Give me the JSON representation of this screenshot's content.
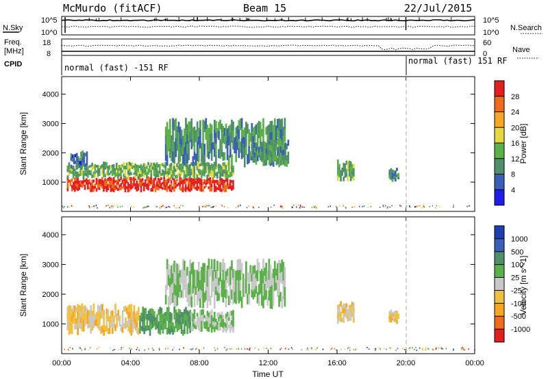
{
  "header": {
    "station": "McMurdo (fitACF)",
    "beam": "Beam 15",
    "date": "22/Jul/2015"
  },
  "status_panel": {
    "nsky_label": "N.Sky",
    "nsearch_label": "N.Search",
    "nsky_ticks": [
      "10^5",
      "10^0"
    ],
    "nsearch_ticks": [
      "10^5",
      "10^0"
    ],
    "freq_label_line1": "Freq.",
    "freq_label_line2": "[MHz]",
    "freq_ticks": [
      "18",
      "8"
    ],
    "nave_label": "Nave",
    "nave_ticks": [
      "60",
      "0"
    ],
    "cpid_label": "CPID",
    "cpid_segments": [
      {
        "text": "normal (fast) -151 RF",
        "start_hour": 0,
        "end_hour": 20.0
      },
      {
        "text": "normal (fast) 151 RF",
        "start_hour": 20.0,
        "end_hour": 24
      }
    ]
  },
  "x_axis": {
    "label": "Time UT",
    "ticks": [
      "00:00",
      "04:00",
      "08:00",
      "12:00",
      "16:00",
      "20:00",
      "00:00"
    ],
    "tick_hours": [
      0,
      4,
      8,
      12,
      16,
      20,
      24
    ]
  },
  "colors": {
    "power": [
      "#1e1ee6",
      "#3a5fb8",
      "#4f8f6a",
      "#5bb04a",
      "#e6d640",
      "#f5a623",
      "#ef6a1a",
      "#e02020"
    ],
    "velocity": [
      "#e02020",
      "#ef6a1a",
      "#f5a623",
      "#f0c040",
      "#c8c8c8",
      "#5bb04a",
      "#4f8f6a",
      "#3a5fb8",
      "#1e3fb0"
    ]
  },
  "chart_data": [
    {
      "type": "heatmap",
      "title": "",
      "ylabel": "Slant Range [km]",
      "xlabel": "",
      "ylim": [
        0,
        4600
      ],
      "xlim": [
        0,
        24
      ],
      "yticks": [
        1000,
        2000,
        3000,
        4000
      ],
      "colorbar": {
        "label": "Power [dB]",
        "ticks": [
          "28",
          "24",
          "20",
          "16",
          "12",
          "8",
          "4"
        ],
        "range": [
          0,
          32
        ]
      },
      "blobs": [
        {
          "t0": 0.3,
          "t1": 10.0,
          "r0": 650,
          "r1": 1200,
          "level": 30,
          "note": "strong scatter band"
        },
        {
          "t0": 0.3,
          "t1": 10.0,
          "r0": 1100,
          "r1": 1700,
          "level": 13
        },
        {
          "t0": 6.0,
          "t1": 13.0,
          "r0": 1500,
          "r1": 3200,
          "level": 10
        },
        {
          "t0": 11.0,
          "t1": 13.2,
          "r0": 1500,
          "r1": 2500,
          "level": 11
        },
        {
          "t0": 16.0,
          "t1": 17.0,
          "r0": 1000,
          "r1": 1800,
          "level": 14
        },
        {
          "t0": 19.0,
          "t1": 19.6,
          "r0": 1000,
          "r1": 1500,
          "level": 9
        },
        {
          "t0": 0.5,
          "t1": 1.5,
          "r0": 1400,
          "r1": 2100,
          "level": 8
        }
      ]
    },
    {
      "type": "heatmap",
      "title": "",
      "ylabel": "Slant Range [km]",
      "xlabel": "Time UT",
      "ylim": [
        0,
        4600
      ],
      "xlim": [
        0,
        24
      ],
      "yticks": [
        1000,
        2000,
        3000,
        4000
      ],
      "colorbar": {
        "label": "Velocity [m s^-1]",
        "ticks": [
          "1000",
          "500",
          "100",
          "25",
          "-25",
          "-100",
          "-500",
          "-1000"
        ],
        "range": [
          -1200,
          1200
        ]
      },
      "blobs": [
        {
          "t0": 0.3,
          "t1": 4.5,
          "r0": 600,
          "r1": 1700,
          "level": -250
        },
        {
          "t0": 4.5,
          "t1": 7.5,
          "r0": 600,
          "r1": 1600,
          "level": 400
        },
        {
          "t0": 7.5,
          "t1": 10.0,
          "r0": 700,
          "r1": 1500,
          "level": 150
        },
        {
          "t0": 6.0,
          "t1": 13.0,
          "r0": 1500,
          "r1": 3200,
          "level": 150
        },
        {
          "t0": 16.0,
          "t1": 17.0,
          "r0": 1000,
          "r1": 1800,
          "level": -200
        },
        {
          "t0": 19.0,
          "t1": 19.6,
          "r0": 1000,
          "r1": 1500,
          "level": -300
        }
      ]
    }
  ]
}
